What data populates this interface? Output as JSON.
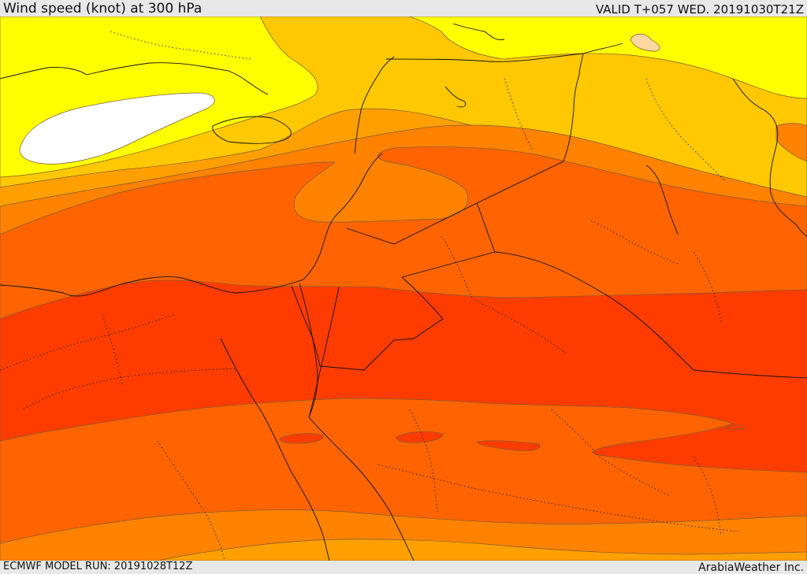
{
  "header": {
    "title": "Wind speed (knot) at 300 hPa",
    "valid_time": "VALID T+057 WED. 20191030T21Z"
  },
  "footer": {
    "model_run": "ECMWF MODEL RUN: 20191028T12Z",
    "credit": "ArabiaWeather Inc."
  },
  "map": {
    "variable": "wind speed",
    "units": "knot",
    "pressure_level_hpa": 300,
    "colors": {
      "calm_white": "#ffffff",
      "bright_yellow": "#ffff00",
      "yellow_orange": "#ffc800",
      "light_orange": "#ffa000",
      "orange": "#ff8200",
      "dark_orange": "#ff6400",
      "red_orange": "#ff3c00",
      "peach": "#ffd7a0"
    }
  }
}
